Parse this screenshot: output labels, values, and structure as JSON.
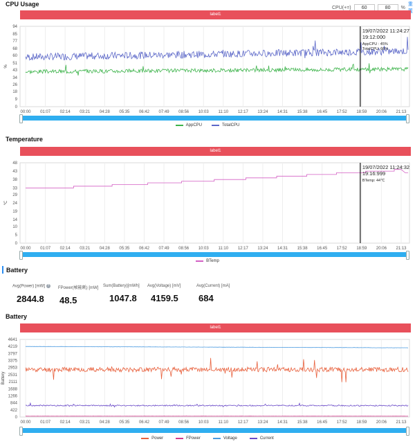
{
  "cpu_section": {
    "title": "CPU Usage",
    "label_bar": "label1",
    "control_label": "CPU(+=)",
    "low_value": "60",
    "high_value": "80",
    "unit": "%",
    "reset_label": "重置"
  },
  "temp_section": {
    "title": "Temperature",
    "label_bar": "label1"
  },
  "battery_summary": {
    "title": "Battery",
    "metrics": [
      {
        "label": "Avg(Power) [mW]",
        "value": "2844.8",
        "help": "?"
      },
      {
        "label": "FPower(帧能耗) [mW]",
        "value": "48.5"
      },
      {
        "label": "Sum(Battery)[mWh]",
        "value": "1047.8"
      },
      {
        "label": "Avg(Voltage) [mV]",
        "value": "4159.5"
      },
      {
        "label": "Avg(Current) [mA]",
        "value": "684"
      }
    ]
  },
  "battery_section": {
    "title": "Battery",
    "label_bar": "label1"
  },
  "colors": {
    "app_cpu": "#3cb34a",
    "total_cpu": "#5b67c8",
    "btemp": "#d35fc4",
    "power": "#e8603c",
    "fpower": "#d23c8c",
    "voltage": "#4a9ae0",
    "current": "#6a4ac8",
    "label_bar": "#e8505b",
    "slider": "#2faef0"
  },
  "chart_data": [
    {
      "type": "line",
      "ylabel": "%",
      "x_ticks": [
        "00:00",
        "01:07",
        "02:14",
        "03:21",
        "04:28",
        "05:35",
        "06:42",
        "07:49",
        "08:56",
        "10:03",
        "11:10",
        "12:17",
        "13:24",
        "14:31",
        "15:38",
        "16:45",
        "17:52",
        "18:59",
        "20:06",
        "21:13"
      ],
      "y_ticks": [
        0,
        9,
        18,
        26,
        34,
        43,
        51,
        60,
        68,
        77,
        85,
        94
      ],
      "ylim": [
        0,
        94
      ],
      "series": [
        {
          "name": "AppCPU",
          "base": 41,
          "trend": 3,
          "noise": 2.2,
          "spike": 8,
          "seed": 3
        },
        {
          "name": "TotalCPU",
          "base": 58,
          "trend": 7,
          "noise": 4.2,
          "spike": 14,
          "seed": 7
        }
      ],
      "marker_x": "18:59",
      "tooltip": [
        "19/07/2022 11:24:27",
        "19:12:000",
        "AppCPU : 45%",
        "TotalCPU: 66%"
      ],
      "grid": "vertical"
    },
    {
      "type": "line",
      "ylabel": "℃",
      "x_ticks": [
        "00:00",
        "01:07",
        "02:14",
        "03:21",
        "04:28",
        "05:35",
        "06:42",
        "07:49",
        "08:56",
        "10:03",
        "11:10",
        "12:17",
        "13:24",
        "14:31",
        "15:38",
        "16:45",
        "17:52",
        "18:59",
        "20:06",
        "21:13"
      ],
      "y_ticks": [
        0,
        5,
        10,
        14,
        19,
        24,
        29,
        33,
        38,
        43,
        48
      ],
      "ylim": [
        0,
        48
      ],
      "series": [
        {
          "name": "BTemp",
          "start": 33,
          "end": 44,
          "step_temp": 1,
          "dip_end": 42
        }
      ],
      "marker_x": "18:59",
      "tooltip": [
        "19/07/2022 11:24:32",
        "19:16:999",
        "BTemp: 44℃"
      ],
      "grid": "vertical"
    },
    {
      "type": "line",
      "ylabel": "Battery",
      "x_ticks": [
        "00:00",
        "01:07",
        "02:14",
        "03:21",
        "04:28",
        "05:35",
        "06:42",
        "07:49",
        "08:56",
        "10:03",
        "11:10",
        "12:17",
        "13:24",
        "14:31",
        "15:38",
        "16:45",
        "17:52",
        "18:59",
        "20:06",
        "21:13"
      ],
      "y_ticks": [
        0,
        422,
        844,
        1266,
        1688,
        2111,
        2531,
        2953,
        3375,
        3797,
        4219,
        4641
      ],
      "ylim": [
        0,
        4641
      ],
      "series": [
        {
          "name": "Power",
          "base": 2840,
          "trend": 0,
          "noise": 140,
          "spike": 700,
          "seed": 11
        },
        {
          "name": "FPower",
          "base": 48,
          "trend": 0,
          "noise": 4,
          "spike": 0,
          "seed": 13
        },
        {
          "name": "Voltage",
          "base": 4219,
          "trend": -80,
          "noise": 6,
          "spike": 0,
          "seed": 17
        },
        {
          "name": "Current",
          "base": 684,
          "trend": 0,
          "noise": 35,
          "spike": 180,
          "seed": 19
        }
      ],
      "grid": "vertical"
    }
  ]
}
